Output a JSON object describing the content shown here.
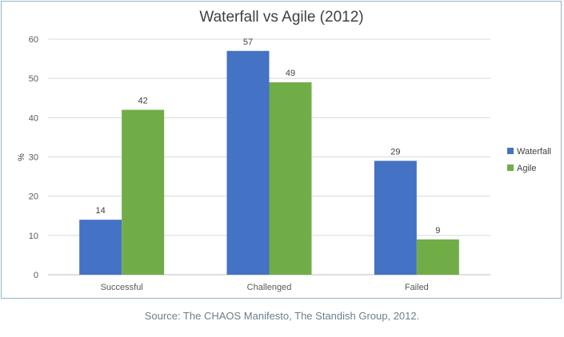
{
  "chart_data": {
    "type": "bar",
    "title": "Waterfall vs Agile (2012)",
    "xlabel": "",
    "ylabel": "%",
    "categories": [
      "Successful",
      "Challenged",
      "Failed"
    ],
    "series": [
      {
        "name": "Waterfall",
        "values": [
          14,
          57,
          29
        ],
        "color": "#4472c4"
      },
      {
        "name": "Agile",
        "values": [
          42,
          49,
          9
        ],
        "color": "#70ad47"
      }
    ],
    "ylim": [
      0,
      60
    ],
    "yticks": [
      "0",
      "10",
      "20",
      "30",
      "40",
      "50",
      "60"
    ],
    "grid": true,
    "legend": "right"
  },
  "source_note": "Source: The CHAOS Manifesto, The Standish Group, 2012."
}
